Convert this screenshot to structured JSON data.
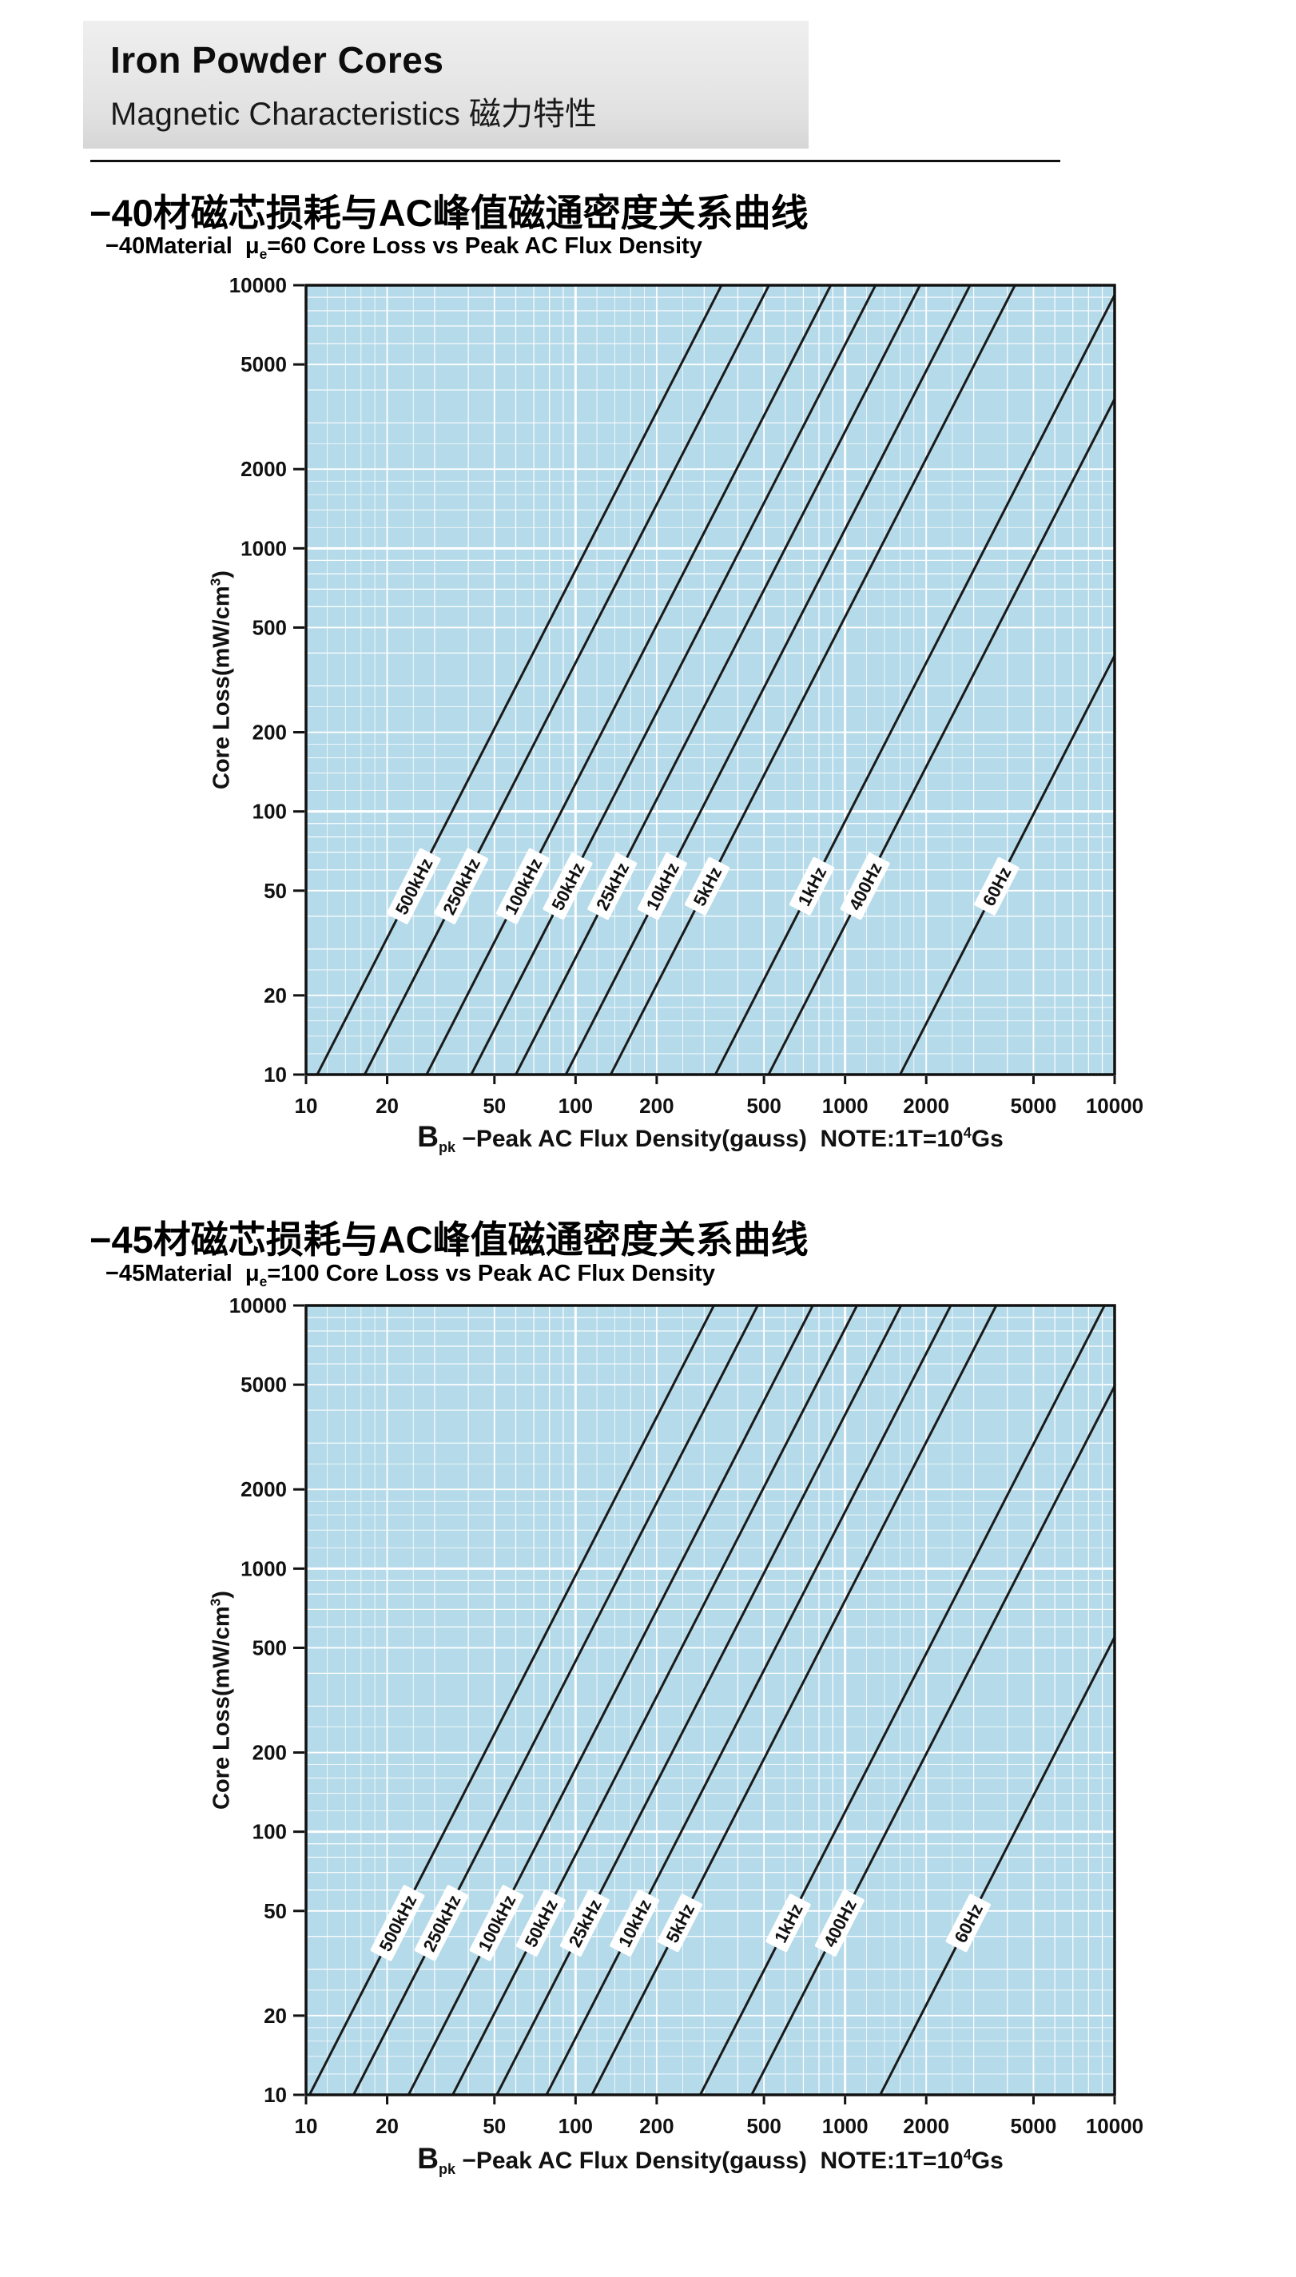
{
  "header": {
    "title": "Iron Powder Cores",
    "subtitle": "Magnetic Characteristics 磁力特性"
  },
  "chart_data": [
    {
      "id": "material-40",
      "type": "line",
      "title": "−40材磁芯损耗与AC峰值磁通密度关系曲线",
      "subtitle": "−40Material μe=60 Core Loss vs Peak AC Flux Density",
      "subtitle_parts": {
        "prefix": "−40Material  μ",
        "sub": "e",
        "rest": "=60 Core Loss vs Peak AC Flux Density"
      },
      "xlabel": "Bpk −Peak AC Flux Density(gauss)  NOTE:1T=10^4Gs",
      "ylabel": "Core Loss(mW/cm^3)",
      "xlabel_parts": {
        "b": "B",
        "sub": "pk",
        "mid": " −Peak AC Flux Density(gauss)  NOTE:1T=10",
        "sup": "4",
        "end": "Gs"
      },
      "ylabel_parts": {
        "prefix": "Core Loss(mW/cm",
        "sup": "3",
        "end": ")"
      },
      "xscale": "log",
      "yscale": "log",
      "xlim": [
        10,
        10000
      ],
      "ylim": [
        10,
        10000
      ],
      "xticks": [
        10,
        20,
        50,
        100,
        200,
        500,
        1000,
        2000,
        5000,
        10000
      ],
      "yticks": [
        10,
        20,
        50,
        100,
        200,
        500,
        1000,
        2000,
        5000,
        10000
      ],
      "grid": true,
      "plot_bg": "#b5dae9",
      "line_color": "#1a1a1a",
      "label_y": 52,
      "series": [
        {
          "name": "500kHz",
          "points": [
            [
              11,
              10
            ],
            [
              348,
              10000
            ]
          ]
        },
        {
          "name": "250kHz",
          "points": [
            [
              16.5,
              10
            ],
            [
              522,
              10000
            ]
          ]
        },
        {
          "name": "100kHz",
          "points": [
            [
              28,
              10
            ],
            [
              885,
              10000
            ]
          ]
        },
        {
          "name": "50kHz",
          "points": [
            [
              41,
              10
            ],
            [
              1297,
              10000
            ]
          ]
        },
        {
          "name": "25kHz",
          "points": [
            [
              60,
              10
            ],
            [
              1897,
              10000
            ]
          ]
        },
        {
          "name": "10kHz",
          "points": [
            [
              92,
              10
            ],
            [
              2909,
              10000
            ]
          ]
        },
        {
          "name": "5kHz",
          "points": [
            [
              135,
              10
            ],
            [
              4269,
              10000
            ]
          ]
        },
        {
          "name": "1kHz",
          "points": [
            [
              330,
              10
            ],
            [
              10000,
              9183
            ]
          ]
        },
        {
          "name": "400Hz",
          "points": [
            [
              520,
              10
            ],
            [
              10000,
              3698
            ]
          ]
        },
        {
          "name": "60Hz",
          "points": [
            [
              1600,
              10
            ],
            [
              10000,
              391
            ]
          ]
        }
      ]
    },
    {
      "id": "material-45",
      "type": "line",
      "title": "−45材磁芯损耗与AC峰值磁通密度关系曲线",
      "subtitle": "−45Material μe=100 Core Loss vs Peak AC Flux Density",
      "subtitle_parts": {
        "prefix": "−45Material  μ",
        "sub": "e",
        "rest": "=100 Core Loss vs Peak AC Flux Density"
      },
      "xlabel": "Bpk −Peak AC Flux Density(gauss)  NOTE:1T=10^4Gs",
      "ylabel": "Core Loss(mW/cm^3)",
      "xlabel_parts": {
        "b": "B",
        "sub": "pk",
        "mid": " −Peak AC Flux Density(gauss)  NOTE:1T=10",
        "sup": "4",
        "end": "Gs"
      },
      "ylabel_parts": {
        "prefix": "Core Loss(mW/cm",
        "sup": "3",
        "end": ")"
      },
      "xscale": "log",
      "yscale": "log",
      "xlim": [
        10,
        10000
      ],
      "ylim": [
        10,
        10000
      ],
      "xticks": [
        10,
        20,
        50,
        100,
        200,
        500,
        1000,
        2000,
        5000,
        10000
      ],
      "yticks": [
        10,
        20,
        50,
        100,
        200,
        500,
        1000,
        2000,
        5000,
        10000
      ],
      "grid": true,
      "plot_bg": "#b5dae9",
      "line_color": "#1a1a1a",
      "label_y": 45,
      "series": [
        {
          "name": "500kHz",
          "points": [
            [
              10.3,
              10
            ],
            [
              326,
              10000
            ]
          ]
        },
        {
          "name": "250kHz",
          "points": [
            [
              15,
              10
            ],
            [
              474,
              10000
            ]
          ]
        },
        {
          "name": "100kHz",
          "points": [
            [
              24,
              10
            ],
            [
              759,
              10000
            ]
          ]
        },
        {
          "name": "50kHz",
          "points": [
            [
              35,
              10
            ],
            [
              1107,
              10000
            ]
          ]
        },
        {
          "name": "25kHz",
          "points": [
            [
              51,
              10
            ],
            [
              1613,
              10000
            ]
          ]
        },
        {
          "name": "10kHz",
          "points": [
            [
              78,
              10
            ],
            [
              2467,
              10000
            ]
          ]
        },
        {
          "name": "5kHz",
          "points": [
            [
              115,
              10
            ],
            [
              3637,
              10000
            ]
          ]
        },
        {
          "name": "1kHz",
          "points": [
            [
              290,
              10
            ],
            [
              9171,
              10000
            ]
          ]
        },
        {
          "name": "400Hz",
          "points": [
            [
              450,
              10
            ],
            [
              10000,
              4938
            ]
          ]
        },
        {
          "name": "60Hz",
          "points": [
            [
              1350,
              10
            ],
            [
              10000,
              549
            ]
          ]
        }
      ]
    }
  ]
}
